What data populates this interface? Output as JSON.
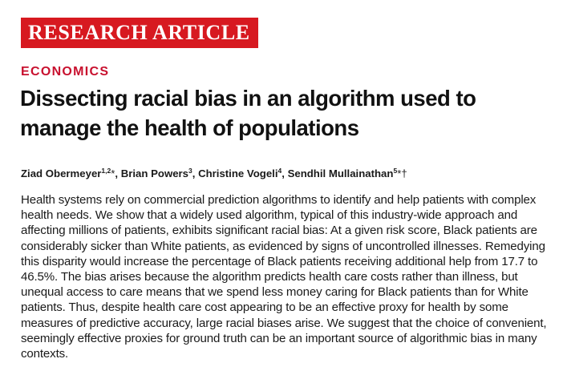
{
  "banner": {
    "label": "RESEARCH ARTICLE",
    "color": "#d71920"
  },
  "section": {
    "label": "ECONOMICS",
    "color": "#c8102e"
  },
  "article": {
    "title": "Dissecting racial bias in an algorithm used to manage the health of populations",
    "authors": [
      {
        "name": "Ziad Obermeyer",
        "affiliations": "1,2",
        "marks": "*",
        "separator": ", "
      },
      {
        "name": "Brian Powers",
        "affiliations": "3",
        "marks": "",
        "separator": ", "
      },
      {
        "name": "Christine Vogeli",
        "affiliations": "4",
        "marks": "",
        "separator": ", "
      },
      {
        "name": "Sendhil Mullainathan",
        "affiliations": "5",
        "marks": "*†",
        "separator": ""
      }
    ],
    "abstract": "Health systems rely on commercial prediction algorithms to identify and help patients with complex health needs. We show that a widely used algorithm, typical of this industry-wide approach and affecting millions of patients, exhibits significant racial bias: At a given risk score, Black patients are considerably sicker than White patients, as evidenced by signs of uncontrolled illnesses. Remedying this disparity would increase the percentage of Black patients receiving additional help from 17.7 to 46.5%. The bias arises because the algorithm predicts health care costs rather than illness, but unequal access to care means that we spend less money caring for Black patients than for White patients. Thus, despite health care cost appearing to be an effective proxy for health by some measures of predictive accuracy, large racial biases arise. We suggest that the choice of convenient, seemingly effective proxies for ground truth can be an important source of algorithmic bias in many contexts."
  }
}
